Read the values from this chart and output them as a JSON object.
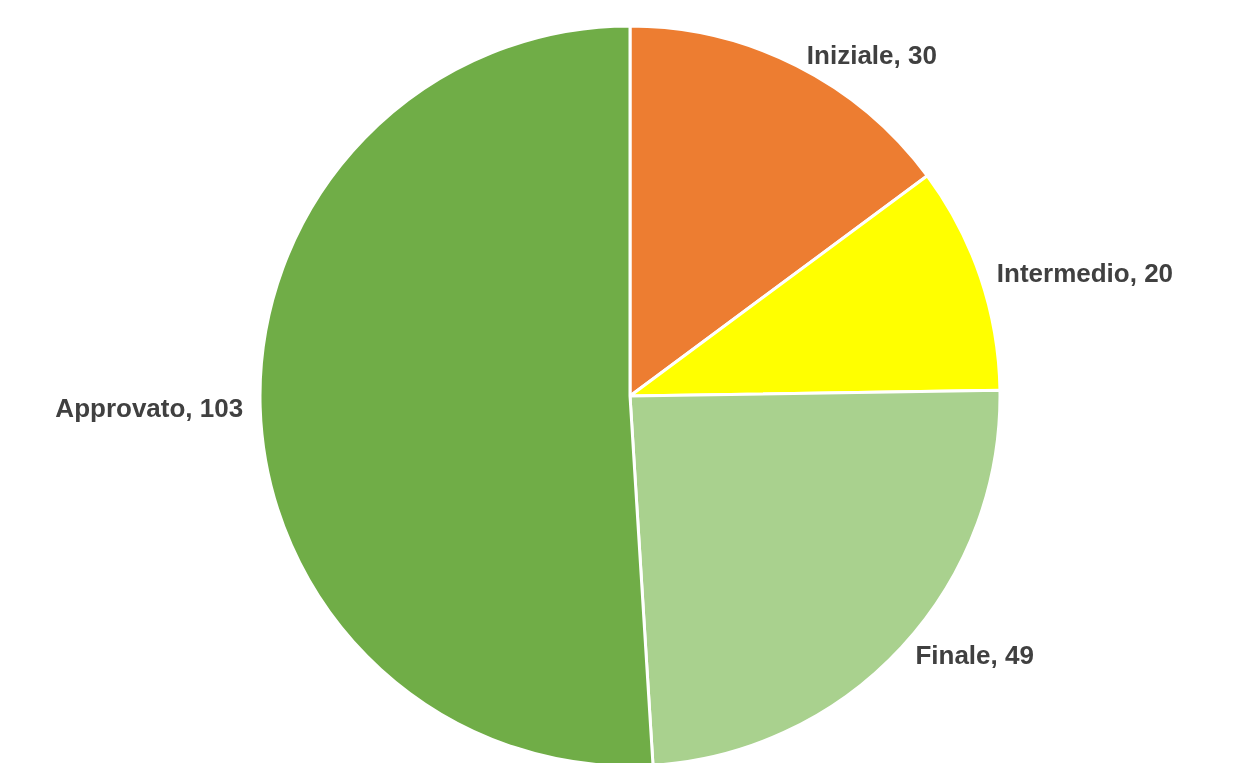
{
  "chart_data": {
    "type": "pie",
    "categories": [
      "Iniziale",
      "Intermedio",
      "Finale",
      "Approvato"
    ],
    "values": [
      30,
      20,
      49,
      103
    ],
    "value_labels": [
      ", 30",
      ", 20",
      ", 49",
      ", 103"
    ],
    "colors": [
      "#ed7d31",
      "#ffff00",
      "#a9d18e",
      "#70ad47"
    ]
  }
}
